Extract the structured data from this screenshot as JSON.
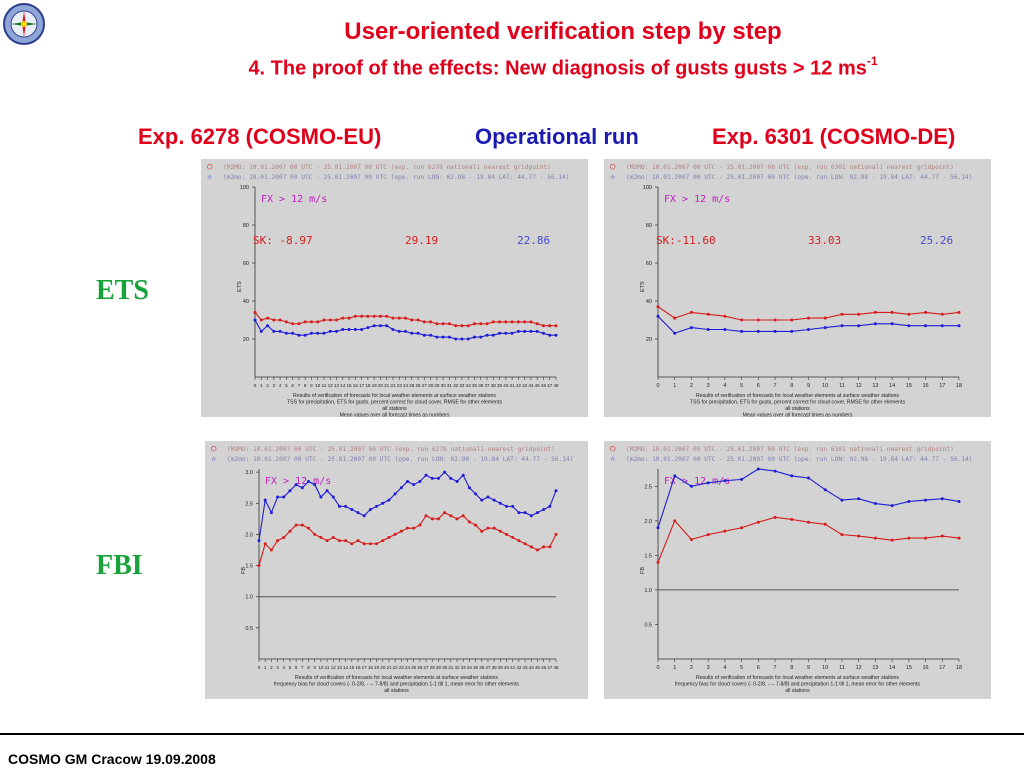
{
  "header": {
    "title": "User-oriented verification step by step",
    "subtitle": "4. The proof of the effects: New diagnosis of gusts gusts > 12 ms",
    "subtitle_sup": "-1",
    "col_left": "Exp. 6278 (COSMO-EU)",
    "col_mid": "Operational run",
    "col_right": "Exp. 6301 (COSMO-DE)"
  },
  "rows": {
    "ets": "ETS",
    "fbi": "FBI"
  },
  "footer": "COSMO GM Cracow 19.09.2008",
  "colors": {
    "red": "#e0001b",
    "blue": "#1a1ab0",
    "green": "#17a23a",
    "series_red": "#d81b1b",
    "series_blue": "#1d1dd8",
    "panel_bg": "#d3d3d3"
  },
  "chart_data": [
    {
      "id": "ets-eu",
      "type": "line",
      "legend1": "(M2MO: 10.01.2007 00 UTC - 25.01.2007 00 UTC (exp. run 6278 nationali nearest gridpoint)",
      "legend2": "(m2mo: 10.01.2007 00 UTC - 25.01.2007 00 UTC (ope. run LON: 02.98 - 19.84 LAT: 44.77 - 56.14)",
      "label": "FX > 12 m/s",
      "sk": [
        "SK:  -8.97",
        "29.19",
        "22.86"
      ],
      "ylabel": "ETS",
      "yticks": [
        20,
        40,
        60,
        80,
        100
      ],
      "ylim": [
        0,
        100
      ],
      "x": [
        0,
        1,
        2,
        3,
        4,
        5,
        6,
        7,
        8,
        9,
        10,
        11,
        12,
        13,
        14,
        15,
        16,
        17,
        18,
        19,
        20,
        21,
        22,
        23,
        24,
        25,
        26,
        27,
        28,
        29,
        30,
        31,
        32,
        33,
        34,
        35,
        36,
        37,
        38,
        39,
        40,
        41,
        42,
        43,
        44,
        45,
        46,
        47,
        48
      ],
      "xticks": [
        0,
        1,
        2,
        3,
        4,
        5,
        6,
        7,
        8,
        9,
        10,
        11,
        12,
        13,
        14,
        15,
        16,
        17,
        18,
        19,
        20,
        21,
        22,
        23,
        24,
        25,
        26,
        27,
        28,
        29,
        30,
        31,
        32,
        33,
        34,
        35,
        36,
        37,
        38,
        39,
        40,
        41,
        42,
        43,
        44,
        45,
        46,
        47,
        48
      ],
      "xlim": [
        0,
        48
      ],
      "hline": null,
      "series": [
        {
          "color": "red",
          "values": [
            34,
            30,
            31,
            30,
            30,
            29,
            28,
            28,
            29,
            29,
            29,
            30,
            30,
            30,
            31,
            31,
            32,
            32,
            32,
            32,
            32,
            32,
            31,
            31,
            31,
            30,
            30,
            29,
            29,
            28,
            28,
            28,
            27,
            27,
            27,
            28,
            28,
            28,
            29,
            29,
            29,
            29,
            29,
            29,
            29,
            28,
            27,
            27,
            27
          ]
        },
        {
          "color": "blue",
          "values": [
            30,
            24,
            27,
            24,
            24,
            23,
            23,
            22,
            22,
            23,
            23,
            23,
            24,
            24,
            25,
            25,
            25,
            25,
            26,
            27,
            27,
            27,
            25,
            24,
            24,
            23,
            23,
            22,
            22,
            21,
            21,
            21,
            20,
            20,
            20,
            21,
            21,
            22,
            22,
            23,
            23,
            23,
            24,
            24,
            24,
            24,
            23,
            22,
            22
          ]
        }
      ],
      "caption": [
        "Results of verification of forecasts for local weather elements at surface weather stations",
        "TSS          for precipitation, ETS for gusts, percent correct for cloud cover, RMSE for other elements",
        "all stations",
        "Mean values over all forecast times as numbers"
      ]
    },
    {
      "id": "ets-de",
      "type": "line",
      "legend1": "(M2MO: 10.01.2007 00 UTC - 25.01.2007 00 UTC (exp. run 6301 nationali nearest gridpoint)",
      "legend2": "(m2mo: 10.01.2007 00 UTC - 25.01.2007 00 UTC (ope. run LON: 02.98 - 19.84 LAT: 44.77 - 56.14)",
      "label": "FX > 12 m/s",
      "sk": [
        "SK:-11.60",
        "33.03",
        "25.26"
      ],
      "ylabel": "ETS",
      "yticks": [
        20,
        40,
        60,
        80,
        100
      ],
      "ylim": [
        0,
        100
      ],
      "x": [
        0,
        1,
        2,
        3,
        4,
        5,
        6,
        7,
        8,
        9,
        10,
        11,
        12,
        13,
        14,
        15,
        16,
        17,
        18
      ],
      "xticks": [
        0,
        1,
        2,
        3,
        4,
        5,
        6,
        7,
        8,
        9,
        10,
        11,
        12,
        13,
        14,
        15,
        16,
        17,
        18
      ],
      "xlim": [
        0,
        18
      ],
      "hline": null,
      "series": [
        {
          "color": "red",
          "values": [
            37,
            31,
            34,
            33,
            32,
            30,
            30,
            30,
            30,
            31,
            31,
            33,
            33,
            34,
            34,
            33,
            34,
            33,
            34
          ]
        },
        {
          "color": "blue",
          "values": [
            32,
            23,
            26,
            25,
            25,
            24,
            24,
            24,
            24,
            25,
            26,
            27,
            27,
            28,
            28,
            27,
            27,
            27,
            27
          ]
        }
      ],
      "caption": [
        "Results of verification of forecasts for local weather elements at surface weather stations",
        "TSS          for precipitation, ETS for gusts, percent correct for cloud cover, RMSE for other elements",
        "all stations",
        "Mean values over all forecast times as numbers"
      ]
    },
    {
      "id": "fbi-eu",
      "type": "line",
      "legend1": "(M2MO: 10.01.2007 00 UTC - 25.01.2007 00 UTC (exp. run 6278 nationali nearest gridpoint)",
      "legend2": "(m2mo: 10.01.2007 00 UTC - 25.01.2007 00 UTC (ope. run LON: 02.98 - 19.84 LAT: 44.77 - 56.14)",
      "label": "FX > 12 m/s",
      "sk": [],
      "ylabel": "FB",
      "yticks": [
        0.5,
        1.0,
        1.5,
        2.0,
        2.5,
        3.0
      ],
      "ytick_labels": [
        "0.5",
        "1.0",
        "1.5",
        "2.0",
        "2.5",
        "3.0"
      ],
      "ylim": [
        0,
        3.05
      ],
      "x": [
        0,
        1,
        2,
        3,
        4,
        5,
        6,
        7,
        8,
        9,
        10,
        11,
        12,
        13,
        14,
        15,
        16,
        17,
        18,
        19,
        20,
        21,
        22,
        23,
        24,
        25,
        26,
        27,
        28,
        29,
        30,
        31,
        32,
        33,
        34,
        35,
        36,
        37,
        38,
        39,
        40,
        41,
        42,
        43,
        44,
        45,
        46,
        47,
        48
      ],
      "xticks": [
        0,
        1,
        2,
        3,
        4,
        5,
        6,
        7,
        8,
        9,
        10,
        11,
        12,
        13,
        14,
        15,
        16,
        17,
        18,
        19,
        20,
        21,
        22,
        23,
        24,
        25,
        26,
        27,
        28,
        29,
        30,
        31,
        32,
        33,
        34,
        35,
        36,
        37,
        38,
        39,
        40,
        41,
        42,
        43,
        44,
        45,
        46,
        47,
        48
      ],
      "xlim": [
        0,
        48
      ],
      "hline": 1.0,
      "series": [
        {
          "color": "red",
          "values": [
            1.5,
            1.85,
            1.75,
            1.9,
            1.95,
            2.05,
            2.15,
            2.15,
            2.1,
            2.0,
            1.95,
            1.9,
            1.95,
            1.9,
            1.9,
            1.85,
            1.9,
            1.85,
            1.85,
            1.85,
            1.9,
            1.95,
            2.0,
            2.05,
            2.1,
            2.1,
            2.15,
            2.3,
            2.25,
            2.25,
            2.35,
            2.3,
            2.25,
            2.3,
            2.2,
            2.15,
            2.05,
            2.1,
            2.1,
            2.05,
            2.0,
            1.95,
            1.9,
            1.85,
            1.8,
            1.75,
            1.8,
            1.8,
            2.0
          ]
        },
        {
          "color": "blue",
          "values": [
            1.9,
            2.55,
            2.35,
            2.6,
            2.6,
            2.7,
            2.8,
            2.75,
            2.85,
            2.8,
            2.6,
            2.7,
            2.6,
            2.45,
            2.45,
            2.4,
            2.35,
            2.3,
            2.4,
            2.45,
            2.5,
            2.55,
            2.65,
            2.75,
            2.85,
            2.8,
            2.85,
            2.95,
            2.9,
            2.9,
            3.0,
            2.9,
            2.85,
            2.95,
            2.75,
            2.65,
            2.55,
            2.6,
            2.55,
            2.5,
            2.45,
            2.45,
            2.35,
            2.35,
            2.3,
            2.35,
            2.4,
            2.45,
            2.7
          ]
        }
      ],
      "caption": [
        "Results of verification of forecasts for local weather elements at surface weather stations",
        "frequency bias for cloud covers (- 0-2/8, - -- 7-8/8) and precipitation 1-1 till 1, mean error for other elements",
        "all stations"
      ]
    },
    {
      "id": "fbi-de",
      "type": "line",
      "legend1": "(M2MO: 10.01.2007 00 UTC - 25.01.2007 00 UTC (exp. run 6301 nationali nearest gridpoint)",
      "legend2": "(m2mo: 10.01.2007 00 UTC - 25.01.2007 00 UTC (ope. run LON: 02.98 - 19.84 LAT: 44.77 - 56.14)",
      "label": "FX > 12 m/s",
      "sk": [],
      "ylabel": "FB",
      "yticks": [
        0.5,
        1.0,
        1.5,
        2.0,
        2.5
      ],
      "ytick_labels": [
        "0.5",
        "1.0",
        "1.5",
        "2.0",
        "2.5"
      ],
      "ylim": [
        0,
        2.75
      ],
      "x": [
        0,
        1,
        2,
        3,
        4,
        5,
        6,
        7,
        8,
        9,
        10,
        11,
        12,
        13,
        14,
        15,
        16,
        17,
        18
      ],
      "xticks": [
        0,
        1,
        2,
        3,
        4,
        5,
        6,
        7,
        8,
        9,
        10,
        11,
        12,
        13,
        14,
        15,
        16,
        17,
        18
      ],
      "xlim": [
        0,
        18
      ],
      "hline": 1.0,
      "series": [
        {
          "color": "red",
          "values": [
            1.4,
            2.0,
            1.73,
            1.8,
            1.85,
            1.9,
            1.98,
            2.05,
            2.02,
            1.98,
            1.95,
            1.8,
            1.78,
            1.75,
            1.72,
            1.75,
            1.75,
            1.78,
            1.75
          ]
        },
        {
          "color": "blue",
          "values": [
            1.9,
            2.65,
            2.5,
            2.55,
            2.58,
            2.6,
            2.75,
            2.72,
            2.65,
            2.62,
            2.45,
            2.3,
            2.32,
            2.25,
            2.22,
            2.28,
            2.3,
            2.32,
            2.28
          ]
        }
      ],
      "caption": [
        "Results of verification of forecasts for local weather elements at surface weather stations",
        "frequency bias for cloud covers (- 0-2/8, - -- 7-8/8) and precipitation 1-1 till 1, mean error for other elements",
        "all stations"
      ]
    }
  ]
}
